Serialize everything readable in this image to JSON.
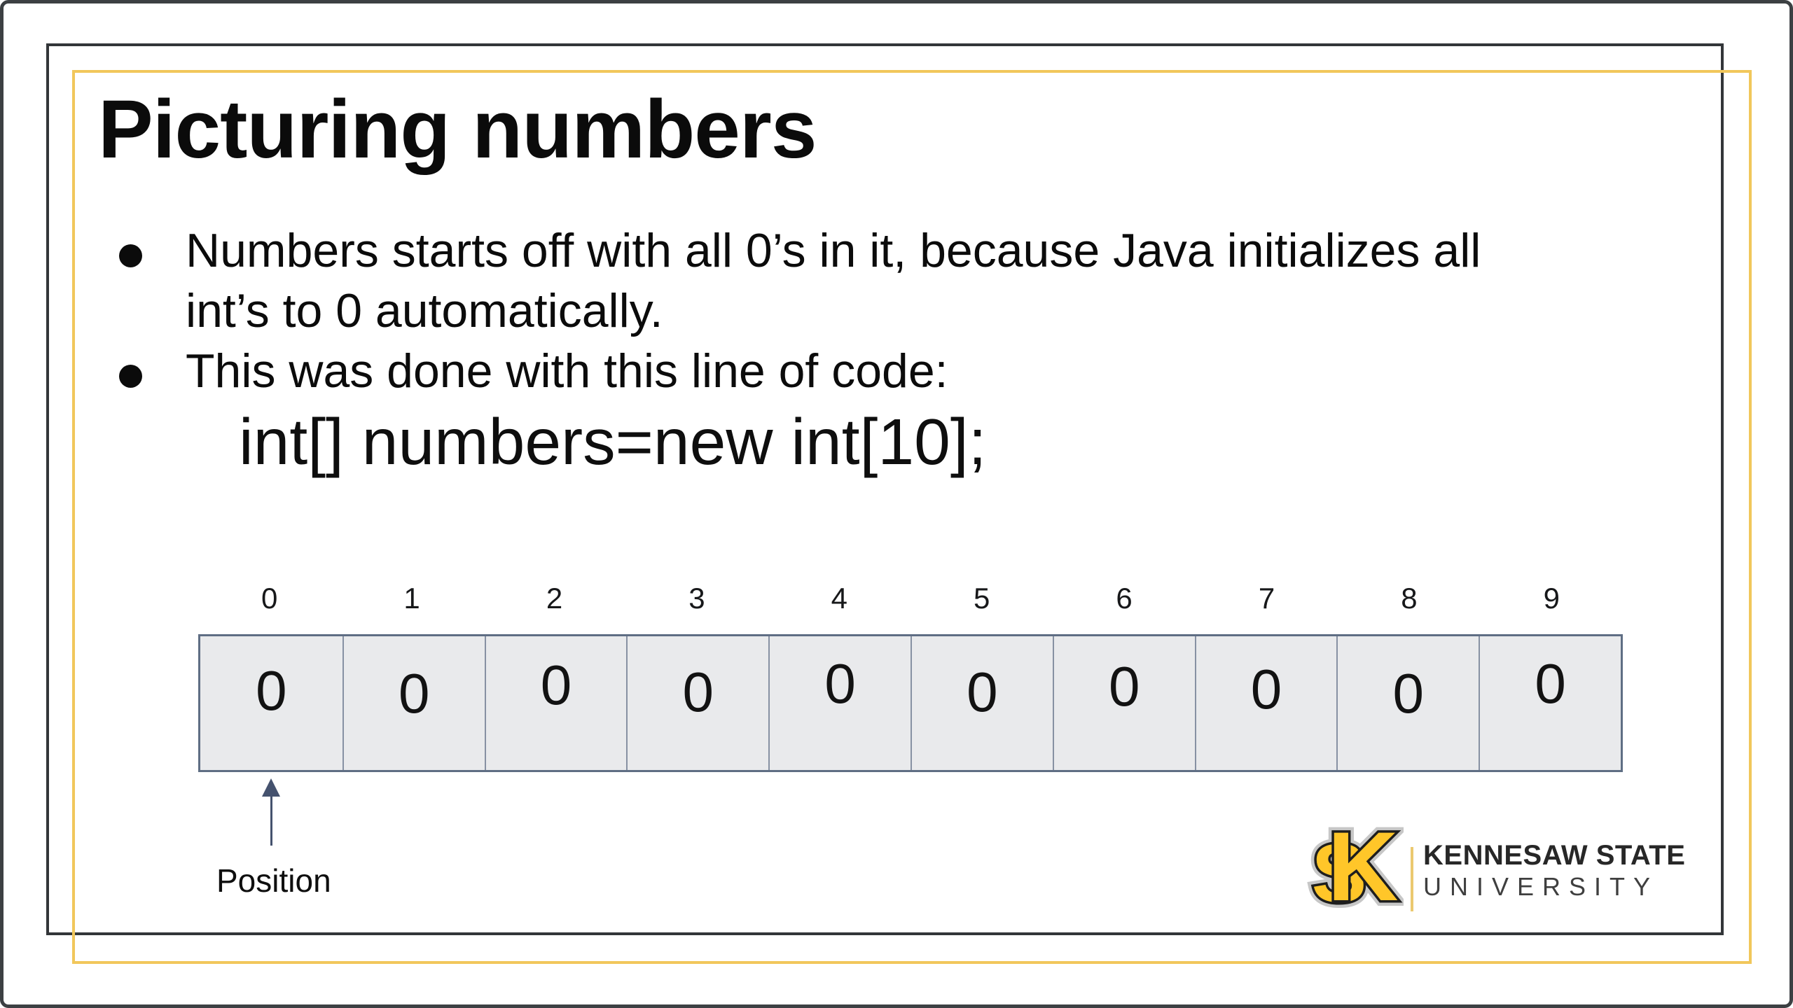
{
  "slide": {
    "title": "Picturing numbers",
    "bullets": [
      {
        "lines": [
          "Numbers starts off with all 0’s in it, because Java initializes all",
          "int’s to 0 automatically."
        ]
      },
      {
        "lines": [
          "This was done with this line of code:"
        ]
      }
    ],
    "code": "int[] numbers=new int[10];",
    "array": {
      "indices": [
        "0",
        "1",
        "2",
        "3",
        "4",
        "5",
        "6",
        "7",
        "8",
        "9"
      ],
      "values": [
        "0",
        "0",
        "0",
        "0",
        "0",
        "0",
        "0",
        "0",
        "0",
        "0"
      ],
      "pointer_label": "Position"
    },
    "logo": {
      "monogram": {
        "letter_s": "S",
        "letter_k": "K"
      },
      "line1": "KENNESAW STATE",
      "line2": "UNIVERSITY"
    },
    "colors": {
      "gold_frame": "#F1C75B",
      "ksu_gold": "#FFC629",
      "cell_fill": "#E9EAEC",
      "cell_border": "#5F6E84",
      "cell_divider": "#8791A3",
      "arrow": "#45526E"
    }
  }
}
